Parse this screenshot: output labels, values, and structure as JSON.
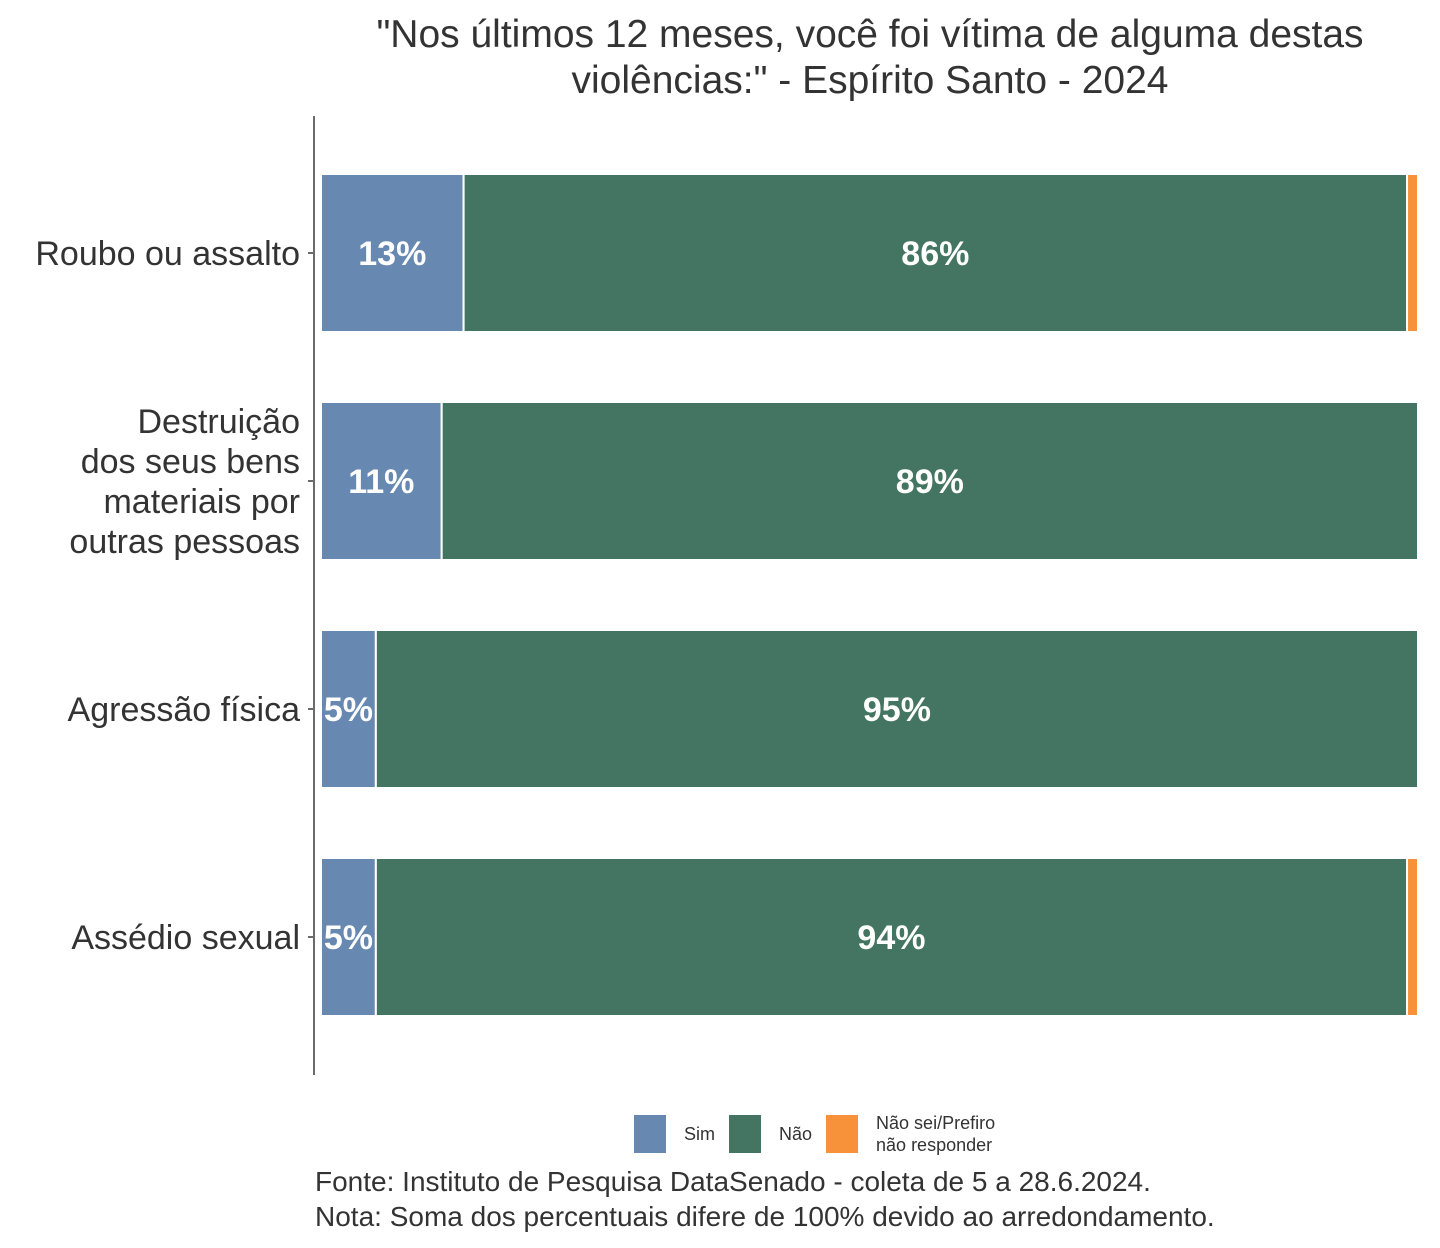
{
  "chart_data": {
    "type": "bar",
    "orientation": "horizontal",
    "stacked": true,
    "title": "\"Nos últimos 12 meses, você foi vítima de alguma destas\nviolências:\" - Espírito Santo - 2024",
    "categories": [
      "Roubo ou assalto",
      "Destruição\ndos seus bens\nmateriais por\noutras pessoas",
      "Agressão física",
      "Assédio sexual"
    ],
    "series": [
      {
        "name": "Sim",
        "color": "#6788B1",
        "values": [
          13,
          11,
          5,
          5
        ],
        "labels": [
          "13%",
          "11%",
          "5%",
          "5%"
        ]
      },
      {
        "name": "Não",
        "color": "#447563",
        "values": [
          86,
          89,
          95,
          94
        ],
        "labels": [
          "86%",
          "89%",
          "95%",
          "94%"
        ]
      },
      {
        "name": "Não sei/Prefiro\nnão responder",
        "color": "#F8923A",
        "values": [
          1,
          0,
          0,
          1
        ],
        "labels": [
          "",
          "",
          "",
          ""
        ]
      }
    ],
    "xlim": [
      0,
      100
    ],
    "grid": false,
    "legend_position": "bottom"
  },
  "footnote": {
    "source": "Fonte: Instituto de Pesquisa DataSenado - coleta de 5 a 28.6.2024.",
    "note": "Nota: Soma dos percentuais difere de 100% devido ao arredondamento."
  }
}
